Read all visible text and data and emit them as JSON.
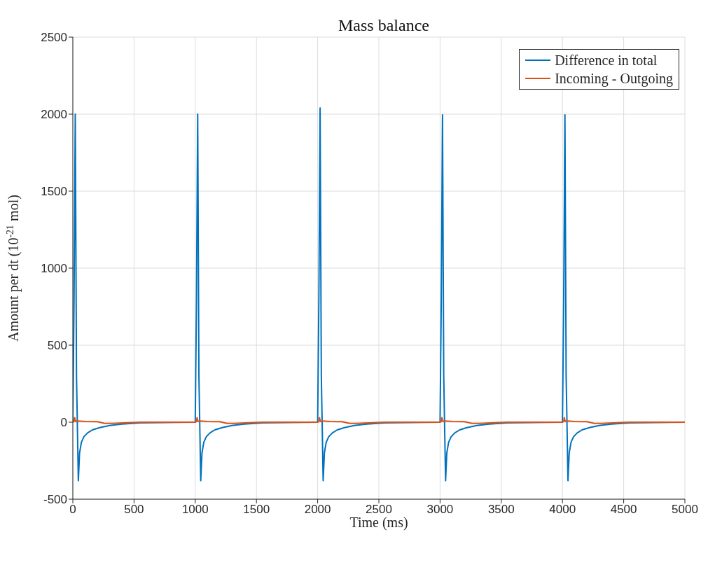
{
  "chart_data": {
    "type": "line",
    "title": "Mass balance",
    "xlabel": "Time (ms)",
    "ylabel": "Amount per dt (10$^{-21}$ mol)",
    "xlim": [
      0,
      5000
    ],
    "xticks": [
      0,
      500,
      1000,
      1500,
      2000,
      2500,
      3000,
      3500,
      4000,
      4500,
      5000
    ],
    "ylim": [
      -500,
      2500
    ],
    "yticks": [
      -500,
      0,
      500,
      1000,
      1500,
      2000,
      2500
    ],
    "grid": true,
    "legend": "top right",
    "marker": "none",
    "line_style": "solid",
    "series": [
      {
        "name": "Difference in total",
        "color": "#0072bd",
        "x": [
          0,
          10,
          20,
          30,
          45,
          55,
          70,
          90,
          120,
          160,
          220,
          300,
          400,
          550,
          1000,
          1010,
          1020,
          1030,
          1045,
          1055,
          1070,
          1090,
          1120,
          1160,
          1220,
          1300,
          1400,
          1550,
          2000,
          2010,
          2020,
          2030,
          2045,
          2055,
          2070,
          2090,
          2120,
          2160,
          2220,
          2300,
          2400,
          2550,
          3000,
          3010,
          3020,
          3030,
          3045,
          3055,
          3070,
          3090,
          3120,
          3160,
          3220,
          3300,
          3400,
          3550,
          4000,
          4010,
          4020,
          4030,
          4045,
          4055,
          4070,
          4090,
          4120,
          4160,
          4220,
          4300,
          4400,
          4550,
          5000
        ],
        "values": [
          0,
          800,
          2000,
          300,
          -380,
          -200,
          -130,
          -95,
          -70,
          -50,
          -35,
          -22,
          -12,
          -5,
          0,
          800,
          2000,
          300,
          -380,
          -200,
          -130,
          -95,
          -70,
          -50,
          -35,
          -22,
          -12,
          -5,
          0,
          800,
          2040,
          300,
          -380,
          -200,
          -130,
          -95,
          -70,
          -50,
          -35,
          -22,
          -12,
          -5,
          0,
          800,
          1995,
          300,
          -380,
          -200,
          -130,
          -95,
          -70,
          -50,
          -35,
          -22,
          -12,
          -5,
          0,
          800,
          1995,
          300,
          -380,
          -200,
          -130,
          -95,
          -70,
          -50,
          -35,
          -22,
          -12,
          -5,
          0
        ]
      },
      {
        "name": "Incoming - Outgoing",
        "color": "#d95319",
        "x": [
          0,
          10,
          15,
          22,
          40,
          100,
          200,
          260,
          320,
          420,
          550,
          1000,
          1010,
          1015,
          1022,
          1040,
          1100,
          1200,
          1260,
          1320,
          1420,
          1550,
          2000,
          2010,
          2015,
          2022,
          2040,
          2100,
          2200,
          2260,
          2320,
          2420,
          2550,
          3000,
          3010,
          3015,
          3022,
          3040,
          3100,
          3200,
          3260,
          3320,
          3420,
          3550,
          4000,
          4010,
          4015,
          4022,
          4040,
          4100,
          4200,
          4260,
          4320,
          4420,
          4550,
          5000
        ],
        "values": [
          0,
          5,
          30,
          5,
          8,
          5,
          3,
          -8,
          -8,
          -4,
          0,
          0,
          5,
          30,
          5,
          8,
          5,
          3,
          -8,
          -8,
          -4,
          0,
          0,
          5,
          30,
          5,
          8,
          5,
          3,
          -8,
          -8,
          -4,
          0,
          0,
          5,
          30,
          5,
          8,
          5,
          3,
          -8,
          -8,
          -4,
          0,
          0,
          5,
          30,
          5,
          8,
          5,
          3,
          -8,
          -8,
          -4,
          0,
          0
        ]
      }
    ]
  }
}
